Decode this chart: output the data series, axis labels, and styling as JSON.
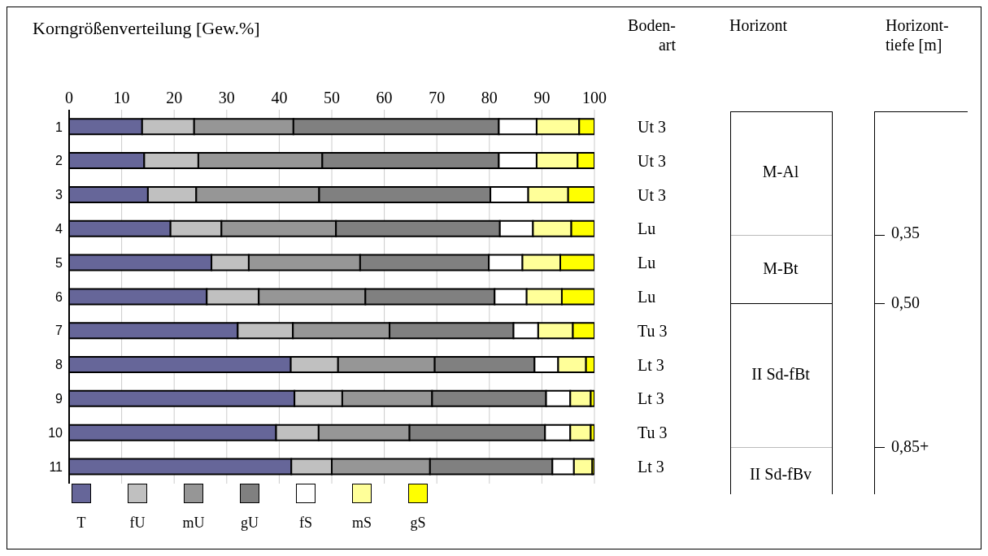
{
  "chart_data": {
    "type": "bar",
    "orientation": "horizontal",
    "stacked": true,
    "title": "Korngrößenverteilung [Gew.%]",
    "y2label": "Boden-\nart",
    "categories": [
      "1",
      "2",
      "3",
      "4",
      "5",
      "6",
      "7",
      "8",
      "9",
      "10",
      "11"
    ],
    "y2_categories": [
      "Ut 3",
      "Ut 3",
      "Ut 3",
      "Lu",
      "Lu",
      "Lu",
      "Tu 3",
      "Lt 3",
      "Lt 3",
      "Tu 3",
      "Lt 3"
    ],
    "series": [
      {
        "name": "T",
        "color": "#666699",
        "values": [
          13.9,
          14.3,
          15.0,
          19.3,
          27.1,
          26.2,
          32.1,
          42.2,
          42.9,
          39.4,
          42.3
        ]
      },
      {
        "name": "fU",
        "color": "#c0c0c0",
        "values": [
          9.9,
          10.3,
          9.2,
          9.7,
          7.1,
          9.9,
          10.5,
          9.0,
          9.1,
          8.1,
          7.7
        ]
      },
      {
        "name": "mU",
        "color": "#969696",
        "values": [
          18.9,
          23.6,
          23.4,
          21.8,
          21.2,
          20.3,
          18.4,
          18.4,
          17.1,
          17.3,
          18.7
        ]
      },
      {
        "name": "gU",
        "color": "#808080",
        "values": [
          39.1,
          33.6,
          32.6,
          31.2,
          24.5,
          24.6,
          23.6,
          19.0,
          21.7,
          25.8,
          23.3
        ]
      },
      {
        "name": "fS",
        "color": "#ffffff",
        "values": [
          7.2,
          7.2,
          7.2,
          6.3,
          6.4,
          6.1,
          4.7,
          4.5,
          4.6,
          4.8,
          4.1
        ]
      },
      {
        "name": "mS",
        "color": "#ffff99",
        "values": [
          8.1,
          7.8,
          7.6,
          7.3,
          7.2,
          6.7,
          6.6,
          5.3,
          3.9,
          3.9,
          3.5
        ]
      },
      {
        "name": "gS",
        "color": "#ffff00",
        "values": [
          2.9,
          3.2,
          5.0,
          4.4,
          6.5,
          6.2,
          4.1,
          1.6,
          0.7,
          0.7,
          0.4
        ]
      }
    ],
    "xlim": [
      0,
      100
    ],
    "xticks": [
      0,
      10,
      20,
      30,
      40,
      50,
      60,
      70,
      80,
      90,
      100
    ],
    "grid": "x",
    "legend": "bottom left",
    "annotations": [
      "Horizont",
      "M-Al",
      "M-Bt",
      "II Sd-fBt",
      "II Sd-fBv",
      "Horizont-\ntiefe [m]",
      "0,35",
      "0,50",
      "0,85+"
    ]
  }
}
